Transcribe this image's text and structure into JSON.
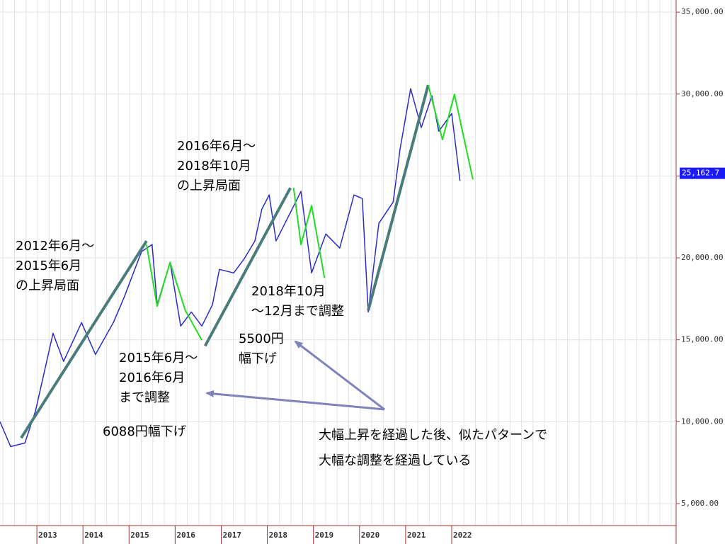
{
  "chart_data": {
    "type": "line",
    "xlim": [
      2012.2,
      2026.87
    ],
    "xticks": [
      2013,
      2014,
      2015,
      2016,
      2017,
      2018,
      2019,
      2020,
      2021,
      2022
    ],
    "ylim": [
      3660,
      35740
    ],
    "yticks": [
      {
        "value": 5000,
        "label": "5,000.00"
      },
      {
        "value": 10000,
        "label": "10,000.00"
      },
      {
        "value": 15000,
        "label": "15,000.00"
      },
      {
        "value": 20000,
        "label": "20,000.00"
      },
      {
        "value": 25000,
        "label": "25,000.00"
      },
      {
        "value": 30000,
        "label": "30,000.00"
      },
      {
        "value": 35000,
        "label": "35,000.00"
      }
    ],
    "grid": true,
    "last_price": {
      "value": 25162.7,
      "label": "25,162.7"
    },
    "series": [
      {
        "color": "#2b2bc8",
        "x": [
          2012.2,
          2012.43,
          2012.74,
          2012.97,
          2013.35,
          2013.58,
          2013.97,
          2014.27,
          2014.66,
          2014.89,
          2015.27,
          2015.5,
          2015.61,
          2015.89,
          2016.12,
          2016.35,
          2016.58,
          2016.81,
          2016.96,
          2017.27,
          2017.5,
          2017.73,
          2017.88,
          2018.04,
          2018.19,
          2018.5,
          2018.73,
          2018.96,
          2019.27,
          2019.57,
          2019.88,
          2020.06,
          2020.19,
          2020.42,
          2020.73,
          2020.88,
          2021.11,
          2021.34,
          2021.57,
          2021.72,
          2022.0,
          2022.18
        ],
        "values": [
          10000,
          8480,
          8700,
          10650,
          15400,
          13680,
          16050,
          14100,
          16050,
          17570,
          20380,
          20810,
          17140,
          19730,
          15840,
          16700,
          15840,
          17140,
          19300,
          19080,
          19950,
          21030,
          22970,
          23840,
          21030,
          22760,
          24060,
          19080,
          21460,
          20600,
          23840,
          23620,
          16700,
          22110,
          23410,
          26650,
          30330,
          27950,
          29900,
          27730,
          28810,
          24700
        ]
      },
      {
        "color": "#4a7c7c",
        "x": [
          2012.66,
          2015.38,
          null,
          2016.65,
          2018.5,
          null,
          2020.19,
          2021.49
        ],
        "values": [
          9010,
          21030,
          null,
          14630,
          24270,
          null,
          16790,
          30550
        ]
      },
      {
        "color": "#22dd22",
        "x": [
          2015.38,
          2015.61,
          2015.89,
          2016.22,
          2016.58,
          null,
          2018.57,
          2018.73,
          2018.96,
          2019.24,
          null,
          2021.49,
          2021.8,
          2022.06,
          2022.46
        ],
        "values": [
          20810,
          17050,
          19730,
          16790,
          14980,
          null,
          24270,
          20810,
          23190,
          18780,
          null,
          30550,
          27220,
          29980,
          24790
        ]
      }
    ],
    "annotations": [
      [
        "2012年6月～",
        "2015年6月",
        "の上昇局面"
      ],
      [
        "2016年6月～",
        "2018年10月",
        "の上昇局面"
      ],
      [
        "2018年10月",
        "～12月まで調整"
      ],
      [
        "5500円",
        "幅下げ"
      ],
      [
        "2015年6月～",
        "2016年6月",
        "まで調整"
      ],
      [
        "6088円幅下げ"
      ],
      [
        "大幅上昇を経過した後、似たパターンで",
        "大幅な調整を経過している"
      ]
    ]
  }
}
